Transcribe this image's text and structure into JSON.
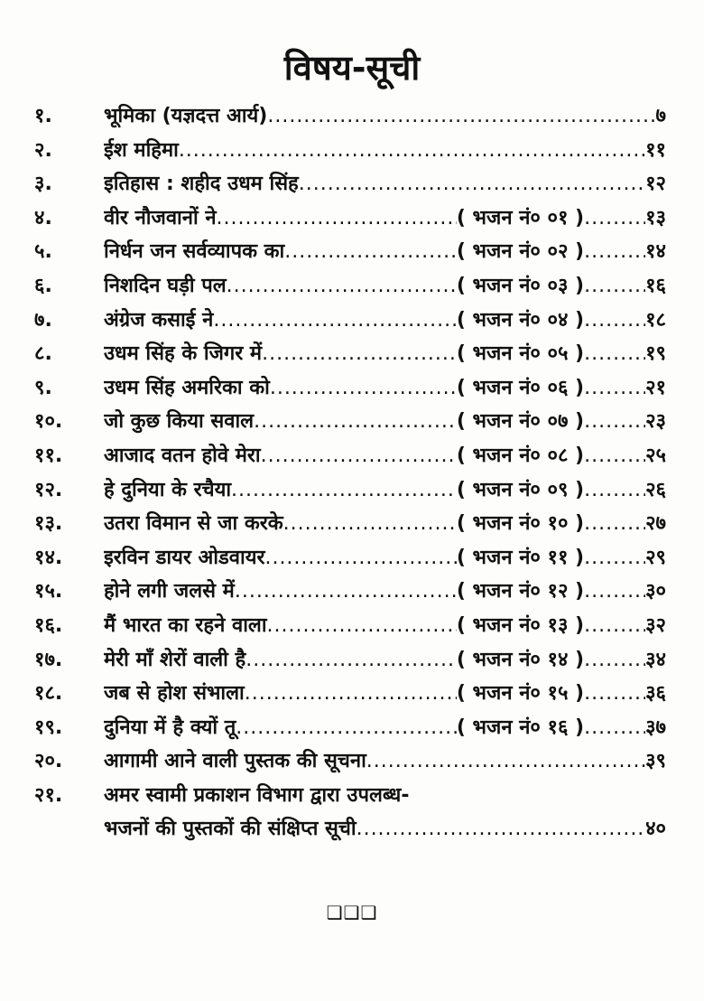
{
  "title": "विषय-सूची",
  "entries": [
    {
      "num": "१.",
      "title": "भूमिका (यज्ञदत्त आर्य)",
      "bhajan": "",
      "page": "७"
    },
    {
      "num": "२.",
      "title": "ईश महिमा",
      "bhajan": "",
      "page": "११"
    },
    {
      "num": "३.",
      "title": "इतिहास : शहीद उधम सिंह",
      "bhajan": "",
      "page": "१२"
    },
    {
      "num": "४.",
      "title": "वीर नौजवानों ने",
      "bhajan": "( भजन नं० ०१ )",
      "page": "१३"
    },
    {
      "num": "५.",
      "title": "निर्धन जन सर्वव्यापक का",
      "bhajan": "( भजन नं० ०२ )",
      "page": "१४"
    },
    {
      "num": "६.",
      "title": "निशदिन घड़ी पल",
      "bhajan": "( भजन नं० ०३ )",
      "page": "१६"
    },
    {
      "num": "७.",
      "title": "अंग्रेज कसाई ने",
      "bhajan": "( भजन नं० ०४ )",
      "page": "१८"
    },
    {
      "num": "८.",
      "title": "उधम सिंह के जिगर में",
      "bhajan": "( भजन नं० ०५ )",
      "page": "१९"
    },
    {
      "num": "९.",
      "title": "उधम सिंह अमरिका को",
      "bhajan": "( भजन नं० ०६ )",
      "page": "२१"
    },
    {
      "num": "१०.",
      "title": "जो कुछ किया सवाल",
      "bhajan": "( भजन नं० ०७ )",
      "page": "२३"
    },
    {
      "num": "११.",
      "title": "आजाद वतन होवे मेरा",
      "bhajan": "( भजन नं० ०८ )",
      "page": "२५"
    },
    {
      "num": "१२.",
      "title": "हे दुनिया के रचैया",
      "bhajan": "( भजन नं० ०९ )",
      "page": "२६"
    },
    {
      "num": "१३.",
      "title": "उतरा विमान से जा करके",
      "bhajan": "( भजन नं० १० )",
      "page": "२७"
    },
    {
      "num": "१४.",
      "title": "इरविन डायर ओडवायर",
      "bhajan": "( भजन नं० ११ )",
      "page": "२९"
    },
    {
      "num": "१५.",
      "title": "होने लगी जलसे में",
      "bhajan": "( भजन नं० १२ )",
      "page": "३०"
    },
    {
      "num": "१६.",
      "title": "मैं भारत का रहने वाला",
      "bhajan": "( भजन नं० १३ )",
      "page": "३२"
    },
    {
      "num": "१७.",
      "title": "मेरी माँ शेरों वाली है",
      "bhajan": "( भजन नं० १४ )",
      "page": "३४"
    },
    {
      "num": "१८.",
      "title": "जब से होश संभाला",
      "bhajan": "( भजन नं० १५ )",
      "page": "३६"
    },
    {
      "num": "१९.",
      "title": "दुनिया में है क्यों तू",
      "bhajan": "( भजन नं० १६ )",
      "page": "३७"
    },
    {
      "num": "२०.",
      "title": "आगामी आने वाली पुस्तक की सूचना",
      "bhajan": "",
      "page": "३९"
    }
  ],
  "last_entry": {
    "num": "२१.",
    "line1": "अमर स्वामी प्रकाशन विभाग द्वारा उपलब्ध-",
    "line2": "भजनों की पुस्तकों की संक्षिप्त सूची",
    "page": "४०"
  },
  "end_mark": "❑❑❑"
}
